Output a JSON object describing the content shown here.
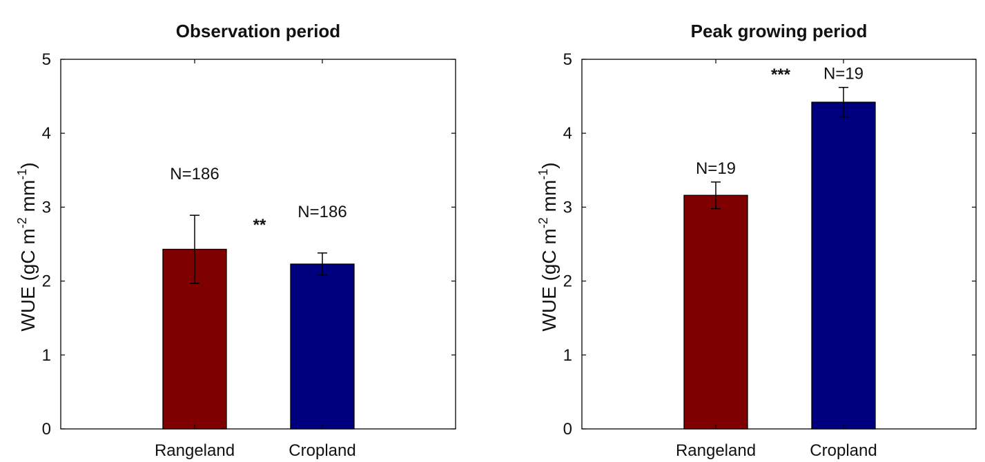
{
  "chart_data": [
    {
      "type": "bar",
      "title": "Observation period",
      "categories": [
        "Rangeland",
        "Cropland"
      ],
      "values": [
        2.43,
        2.23
      ],
      "errors": [
        0.46,
        0.15
      ],
      "colors": [
        "#7f0000",
        "#00007f"
      ],
      "n_labels": [
        "N=186",
        "N=186"
      ],
      "significance": "**",
      "ylabel": {
        "base": "WUE (gC m",
        "sup1": "-2",
        "mid": " mm",
        "sup2": "-1",
        "end": ")"
      },
      "ylim": [
        0,
        5
      ],
      "yticks": [
        "0",
        "1",
        "2",
        "3",
        "4",
        "5"
      ]
    },
    {
      "type": "bar",
      "title": "Peak growing period",
      "categories": [
        "Rangeland",
        "Cropland"
      ],
      "values": [
        3.16,
        4.42
      ],
      "errors": [
        0.18,
        0.2
      ],
      "colors": [
        "#7f0000",
        "#00007f"
      ],
      "n_labels": [
        "N=19",
        "N=19"
      ],
      "significance": "***",
      "ylabel": {
        "base": "WUE (gC m",
        "sup1": "-2",
        "mid": " mm",
        "sup2": "-1",
        "end": ")"
      },
      "ylim": [
        0,
        5
      ],
      "yticks": [
        "0",
        "1",
        "2",
        "3",
        "4",
        "5"
      ]
    }
  ]
}
